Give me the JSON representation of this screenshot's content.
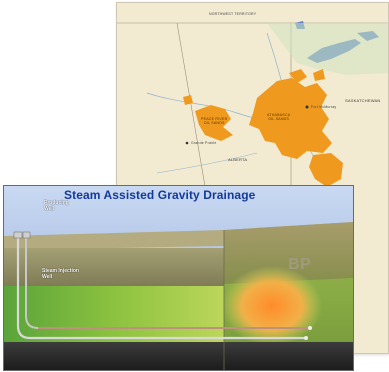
{
  "map": {
    "labels": {
      "territory": "NORTHWEST TERRITORY",
      "province_west": "ALBERTA",
      "province_east": "SASKATCHEWAN",
      "deposit_north": "ATHABASCA\nOIL SANDS",
      "deposit_west": "PEACE RIVER\nOIL SANDS",
      "city_1": "Fort McMurray",
      "city_2": "Grande Prairie",
      "city_3": "Edmonton"
    }
  },
  "diagram": {
    "title": "Steam Assisted Gravity Drainage",
    "producing_well_label": "Producing\nWell",
    "steam_injection_label": "Steam Injection\nWell",
    "logo_text": "BP"
  }
}
